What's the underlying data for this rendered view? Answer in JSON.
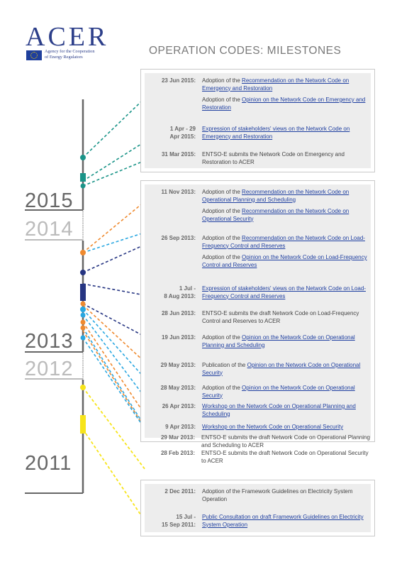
{
  "header": {
    "logo_text": "ACER",
    "logo_subtitle_1": "Agency for the Cooperation",
    "logo_subtitle_2": "of Energy Regulators",
    "title": "OPERATION CODES: MILESTONES"
  },
  "years": {
    "y2015": "2015",
    "y2014": "2014",
    "y2013": "2013",
    "y2012": "2012",
    "y2011": "2011"
  },
  "colors": {
    "teal": "#1a9488",
    "orange": "#ef8a2f",
    "light_blue": "#29a7e1",
    "navy": "#263582",
    "yellow": "#f7e41a",
    "axis_gray": "#666666",
    "link_blue": "#1f3fa0"
  },
  "panels": {
    "p2015": {
      "entries": [
        {
          "date": "23 Jun 2015:",
          "pre": "Adoption of the ",
          "link": "Recommendation on the Network Code on Emergency and Restoration",
          "post": ""
        },
        {
          "date": "",
          "pre": "Adoption of the ",
          "link": "Opinion on the Network Code on Emergency and Restoration",
          "post": ""
        },
        {
          "date": "1 Apr - 29\nApr 2015:",
          "pre": "",
          "link": "Expression of stakeholders' views on the Network Code on Emergency and Restoration",
          "post": ""
        },
        {
          "date": "31 Mar 2015:",
          "pre": "ENTSO-E submits the Network Code on Emergency and Restoration to ACER",
          "link": "",
          "post": ""
        }
      ]
    },
    "p2013": {
      "entries": [
        {
          "date": "11 Nov 2013:",
          "pre": "Adoption of the ",
          "link": "Recommendation on the Network Code on Operational Planning and Scheduling",
          "post": ""
        },
        {
          "date": "",
          "pre": "Adoption of the ",
          "link": "Recommendation on the Network Code on Operational Security",
          "post": ""
        },
        {
          "date": "26 Sep 2013:",
          "pre": "Adoption of the ",
          "link": "Recommendation on the Network Code on Load-Frequency Control and Reserves",
          "post": ""
        },
        {
          "date": "",
          "pre": "Adoption of the ",
          "link": "Opinion on the Network Code on Load-Frequency Control and Reserves",
          "post": ""
        },
        {
          "date": "1 Jul -\n8 Aug 2013:",
          "pre": "",
          "link": "Expression of stakeholders' views on the Network Code on Load-Frequency Control and Reserves",
          "post": ""
        },
        {
          "date": "28 Jun 2013:",
          "pre": "ENTSO-E submits the draft Network Code on Load-Frequency Control and Reserves to ACER",
          "link": "",
          "post": ""
        },
        {
          "date": "19 Jun 2013:",
          "pre": "Adoption of the ",
          "link": "Opinion on the Network Code on Operational Planning and Scheduling",
          "post": ""
        },
        {
          "date": "29 May 2013:",
          "pre": "Publication of the ",
          "link": "Opinion on the Network Code on Operational Security",
          "post": ""
        },
        {
          "date": "28 May 2013:",
          "pre": "Adoption of the ",
          "link": "Opinion on the Network Code on Operational Security",
          "post": ""
        },
        {
          "date": "26 Apr 2013:",
          "pre": "",
          "link": "Workshop on the Network Code on Operational Planning and Scheduling",
          "post": ""
        },
        {
          "date": "9 Apr 2013:",
          "pre": "",
          "link": "Workshop on the Network Code on Operational Security",
          "post": ""
        },
        {
          "date": "29 Mar 2013:",
          "pre": "ENTSO-E submits the draft Network Code on Operational Planning and Scheduling to ACER",
          "link": "",
          "post": ""
        },
        {
          "date": "28 Feb 2013:",
          "pre": "ENTSO-E submits the draft Network Code on Operational Security to ACER",
          "link": "",
          "post": ""
        }
      ]
    },
    "p2011": {
      "entries": [
        {
          "date": "2 Dec 2011:",
          "pre": "Adoption of the Framework Guidelines on Electricity System Operation",
          "link": "",
          "post": ""
        },
        {
          "date": "15 Jul -\n15 Sep 2011:",
          "pre": "",
          "link": "Public Consultation on draft Framework Guidelines on Electricity System Operation",
          "post": ""
        }
      ]
    }
  }
}
